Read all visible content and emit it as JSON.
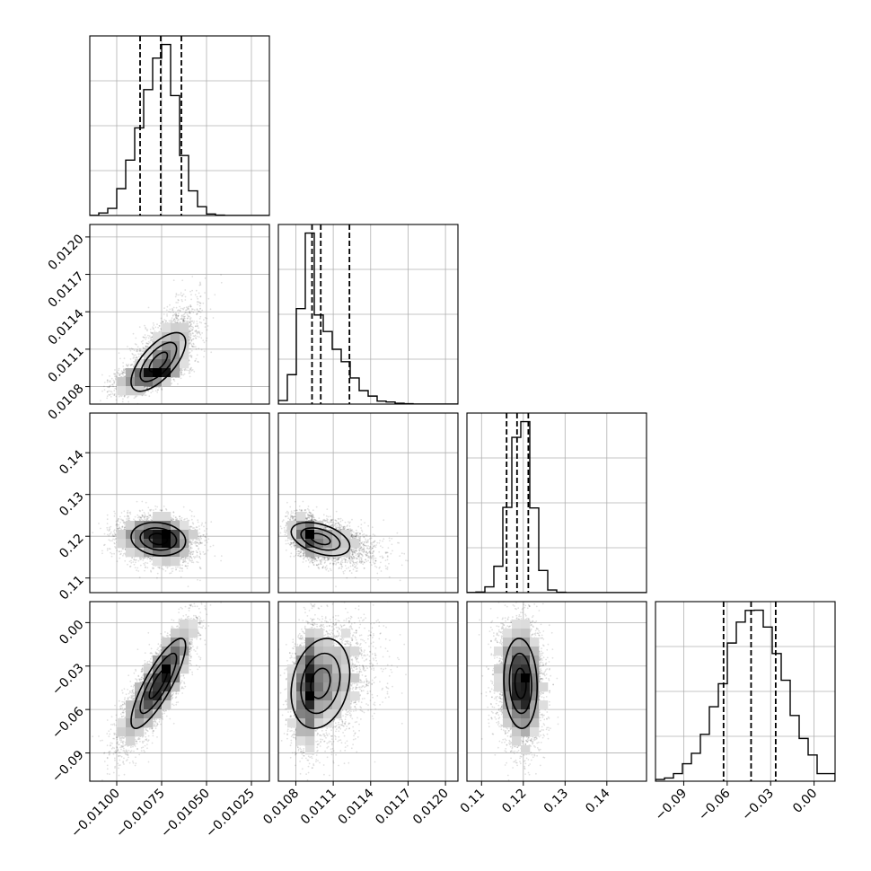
{
  "chart_data": {
    "type": "corner",
    "parameters": [
      {
        "lim": [
          -0.01115,
          -0.01015
        ],
        "ticks": [
          -0.011,
          -0.01075,
          -0.0105,
          -0.01025
        ],
        "tick_labels": [
          "−0.01100",
          "−0.01075",
          "−0.01050",
          "−0.01025"
        ],
        "quantiles": [
          -0.01087,
          -0.010755,
          -0.01064
        ],
        "peak": -0.01076,
        "sd_left": 0.00011,
        "sd_right": 9e-05
      },
      {
        "lim": [
          0.01066,
          0.0121
        ],
        "ticks": [
          0.0108,
          0.0111,
          0.0114,
          0.0117,
          0.012
        ],
        "tick_labels": [
          "0.0108",
          "0.0111",
          "0.0114",
          "0.0117",
          "0.0120"
        ],
        "quantiles": [
          0.01093,
          0.011,
          0.01123
        ],
        "peak": 0.01095,
        "sd_left": 9e-05,
        "sd_right": 0.00021
      },
      {
        "lim": [
          0.1065,
          0.1495
        ],
        "ticks": [
          0.11,
          0.12,
          0.13,
          0.14
        ],
        "tick_labels": [
          "0.11",
          "0.12",
          "0.13",
          "0.14"
        ],
        "quantiles": [
          0.116,
          0.1185,
          0.1212
        ],
        "peak": 0.1195,
        "sd_left": 0.0028,
        "sd_right": 0.0024
      },
      {
        "lim": [
          -0.1095,
          0.0145
        ],
        "ticks": [
          -0.09,
          -0.06,
          -0.03,
          0.0
        ],
        "tick_labels": [
          "−0.09",
          "−0.06",
          "−0.03",
          "0.00"
        ],
        "quantiles": [
          -0.0625,
          -0.0435,
          -0.0265
        ],
        "peak": -0.042,
        "sd_left": 0.019,
        "sd_right": 0.019
      }
    ],
    "pair_correlations": {
      "1-0": 0.7,
      "2-0": -0.15,
      "2-1": -0.45,
      "3-0": 0.9,
      "3-1": 0.25,
      "3-2": -0.1
    },
    "histogram": {
      "bins": 20,
      "style": "step",
      "quantile_lines": "dashed"
    },
    "samples": 5000,
    "density_contours": 3,
    "grid": true,
    "y_tick_labels_on_diagonal": false
  }
}
